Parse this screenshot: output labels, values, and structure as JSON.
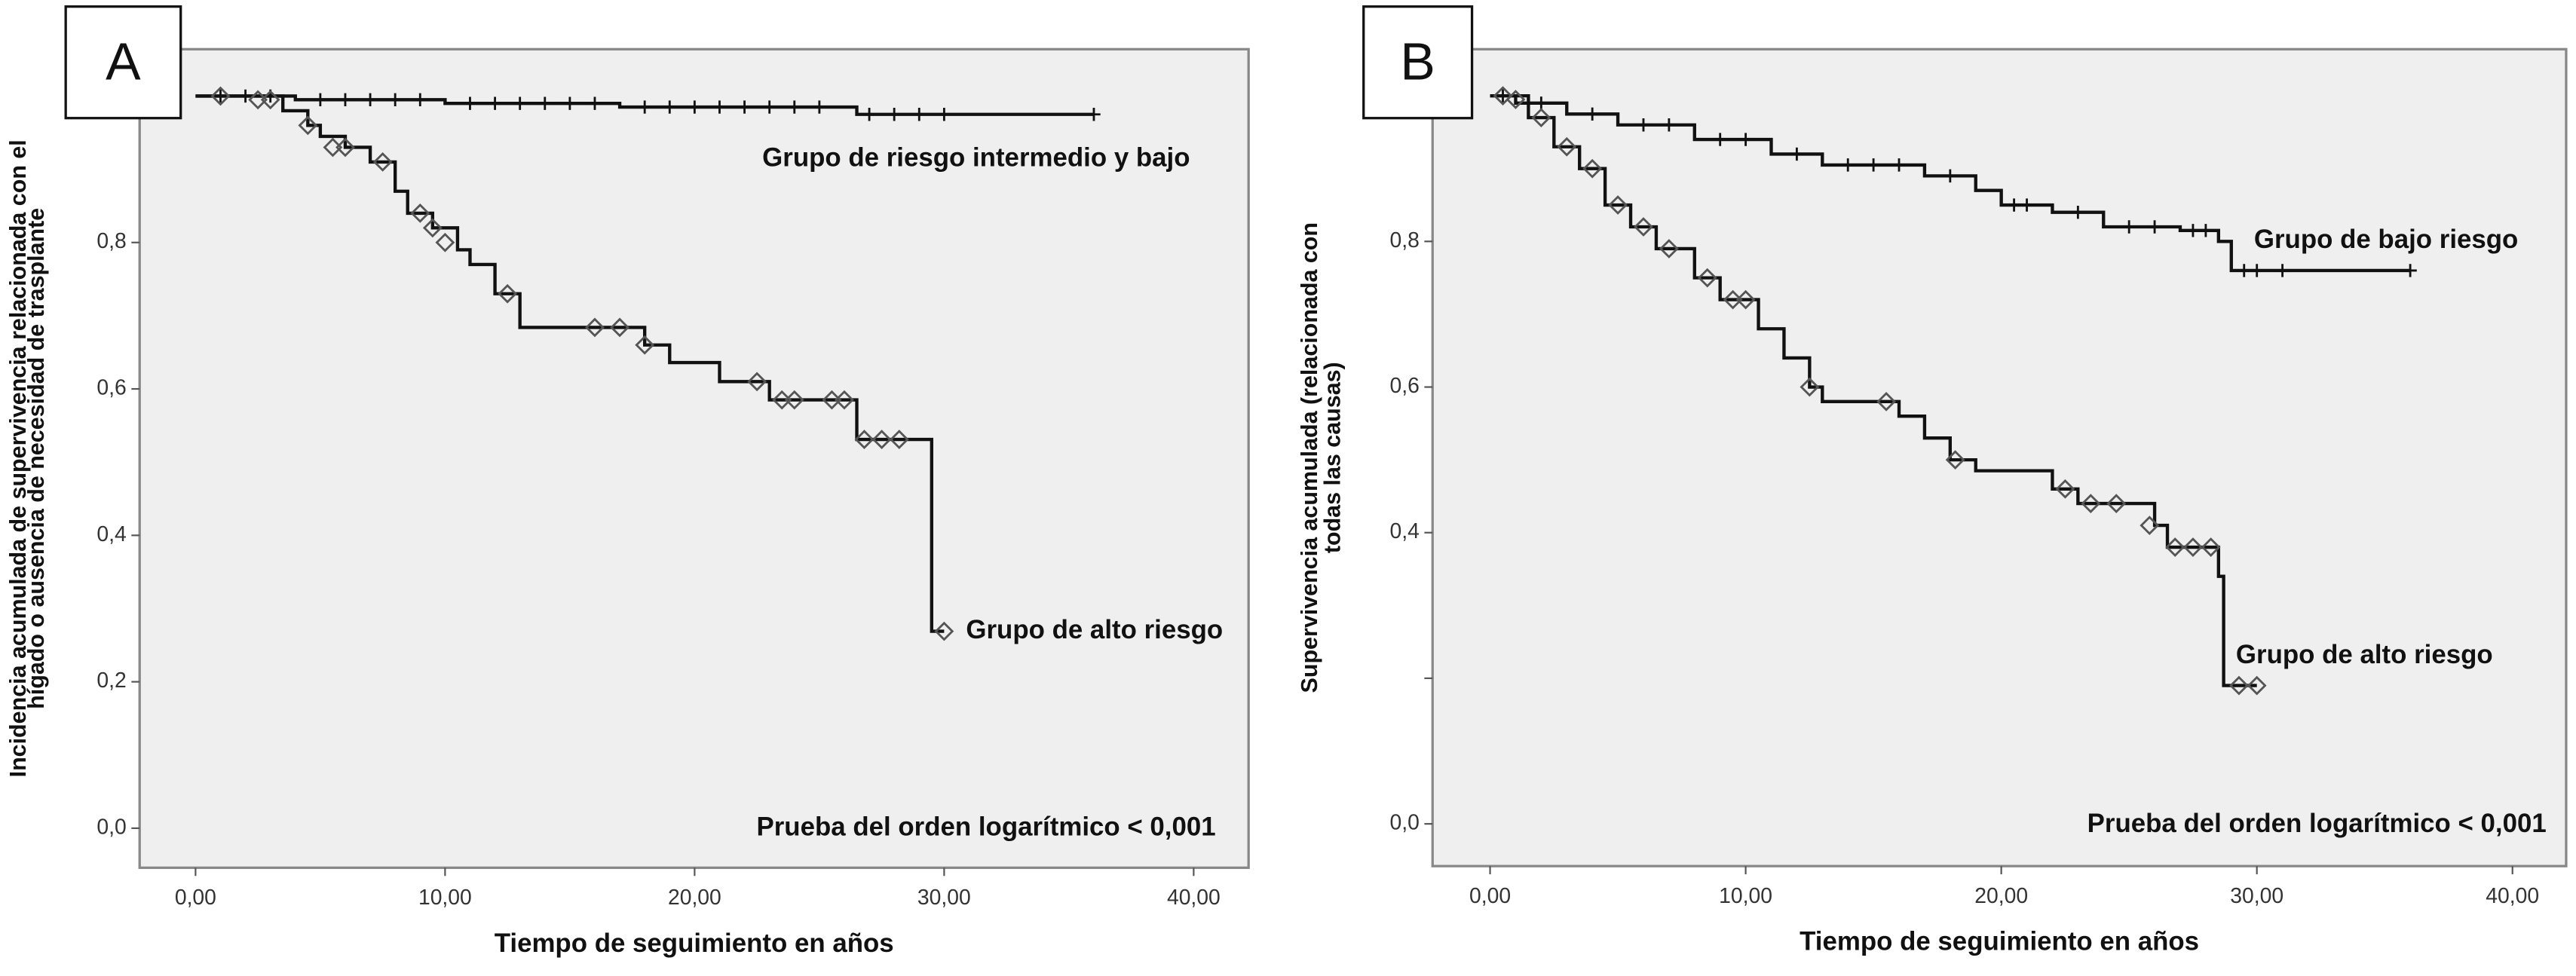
{
  "chart_data": [
    {
      "type": "line",
      "step": true,
      "panel": "A",
      "ylabel": [
        "Incidencia acumulada de supervivencia relacionada con el",
        "hígado o ausencia de necesidad de trasplante"
      ],
      "xlabel": "Tiempo de seguimiento en años",
      "annotation": "Prueba del orden logarítmico < 0,001",
      "xlim": [
        -2.24,
        42.2
      ],
      "ylim": [
        -0.054,
        1.064
      ],
      "xticks": [
        {
          "value": 0,
          "label": "0,00"
        },
        {
          "value": 10,
          "label": "10,00"
        },
        {
          "value": 20,
          "label": "20,00"
        },
        {
          "value": 30,
          "label": "30,00"
        },
        {
          "value": 40,
          "label": "40,00"
        }
      ],
      "yticks": [
        {
          "value": 0,
          "label": "0,0"
        },
        {
          "value": 0.2,
          "label": "0,2"
        },
        {
          "value": 0.4,
          "label": "0,4"
        },
        {
          "value": 0.6,
          "label": "0,6"
        },
        {
          "value": 0.8,
          "label": "0,8"
        }
      ],
      "series": [
        {
          "name": "Grupo de riesgo intermedio y bajo",
          "color": "#111111",
          "marker": "plus",
          "x": [
            0,
            4,
            10,
            17,
            26.5,
            36
          ],
          "values": [
            1.0,
            0.995,
            0.99,
            0.985,
            0.975,
            0.975
          ],
          "censored": {
            "x": [
              1,
              2,
              3,
              5,
              6,
              7,
              8,
              9,
              11,
              12,
              13,
              14,
              15,
              16,
              18,
              19,
              20,
              21,
              22,
              23,
              24,
              25,
              27,
              28,
              29,
              30,
              36
            ],
            "values": [
              1.0,
              1.0,
              1.0,
              0.995,
              0.995,
              0.995,
              0.995,
              0.995,
              0.99,
              0.99,
              0.99,
              0.99,
              0.99,
              0.99,
              0.985,
              0.985,
              0.985,
              0.985,
              0.985,
              0.985,
              0.985,
              0.985,
              0.975,
              0.975,
              0.975,
              0.975,
              0.975
            ]
          }
        },
        {
          "name": "Grupo de alto riesgo",
          "color": "#111111",
          "marker": "diamond",
          "x": [
            0,
            3.5,
            4.5,
            5,
            6,
            7,
            8,
            8.5,
            9.5,
            10.5,
            11,
            12,
            13,
            18,
            19,
            21,
            23,
            26.5,
            29.5,
            30
          ],
          "values": [
            1.0,
            0.98,
            0.96,
            0.945,
            0.93,
            0.91,
            0.87,
            0.84,
            0.82,
            0.79,
            0.77,
            0.73,
            0.684,
            0.66,
            0.636,
            0.61,
            0.585,
            0.531,
            0.269,
            0.269
          ],
          "censored": {
            "x": [
              1,
              2.5,
              3,
              4.5,
              5.5,
              6,
              7.5,
              9,
              9.5,
              10,
              12.5,
              16,
              17,
              18,
              22.5,
              23.5,
              24,
              25.5,
              26,
              26.8,
              27.5,
              28.2,
              30
            ],
            "values": [
              1.0,
              0.995,
              0.995,
              0.96,
              0.93,
              0.93,
              0.91,
              0.84,
              0.82,
              0.8,
              0.73,
              0.684,
              0.684,
              0.66,
              0.61,
              0.585,
              0.585,
              0.585,
              0.585,
              0.531,
              0.531,
              0.531,
              0.269
            ]
          }
        }
      ]
    },
    {
      "type": "line",
      "step": true,
      "panel": "B",
      "ylabel": [
        "Supervivencia acumulada (relacionada con",
        "todas las causas)"
      ],
      "xlabel": "Tiempo de seguimiento en años",
      "annotation": "Prueba del orden logarítmico < 0,001",
      "xlim": [
        -2.25,
        42.1
      ],
      "ylim": [
        -0.058,
        1.064
      ],
      "xticks": [
        {
          "value": 0,
          "label": "0,00"
        },
        {
          "value": 10,
          "label": "10,00"
        },
        {
          "value": 20,
          "label": "20,00"
        },
        {
          "value": 30,
          "label": "30,00"
        },
        {
          "value": 40,
          "label": "40,00"
        }
      ],
      "yticks": [
        {
          "value": 0,
          "label": "0,0"
        },
        {
          "value": 0.2,
          "label": null
        },
        {
          "value": 0.4,
          "label": "0,4"
        },
        {
          "value": 0.6,
          "label": "0,6"
        },
        {
          "value": 0.8,
          "label": "0,8"
        }
      ],
      "series": [
        {
          "name": "Grupo de bajo riesgo",
          "color": "#111111",
          "marker": "plus",
          "x": [
            0,
            1,
            3,
            5,
            8,
            11,
            13,
            17,
            19,
            20,
            22,
            24,
            27,
            28.5,
            29,
            36
          ],
          "values": [
            1.0,
            0.99,
            0.975,
            0.96,
            0.94,
            0.92,
            0.905,
            0.89,
            0.87,
            0.85,
            0.84,
            0.82,
            0.815,
            0.8,
            0.76,
            0.76
          ],
          "censored": {
            "x": [
              0.5,
              2,
              4,
              6,
              7,
              9,
              10,
              12,
              14,
              15,
              16,
              18,
              20.5,
              21,
              23,
              25,
              26,
              27.5,
              28,
              29.5,
              30,
              31,
              36
            ],
            "values": [
              1.0,
              0.99,
              0.975,
              0.96,
              0.96,
              0.94,
              0.94,
              0.92,
              0.905,
              0.905,
              0.905,
              0.89,
              0.85,
              0.85,
              0.84,
              0.82,
              0.82,
              0.815,
              0.815,
              0.76,
              0.76,
              0.76,
              0.76
            ]
          }
        },
        {
          "name": "Grupo de alto riesgo",
          "color": "#111111",
          "marker": "diamond",
          "x": [
            0,
            1.5,
            2.5,
            3.5,
            4.5,
            5.5,
            6.5,
            8,
            9,
            10.5,
            11.5,
            12.5,
            13,
            16,
            17,
            18,
            19,
            22,
            23,
            26,
            26.5,
            28.5,
            28.7,
            30
          ],
          "values": [
            1.0,
            0.97,
            0.93,
            0.9,
            0.85,
            0.82,
            0.79,
            0.75,
            0.72,
            0.68,
            0.64,
            0.6,
            0.58,
            0.56,
            0.53,
            0.5,
            0.485,
            0.46,
            0.44,
            0.41,
            0.38,
            0.34,
            0.19,
            0.19
          ],
          "censored": {
            "x": [
              0.5,
              1,
              2,
              3,
              4,
              5,
              6,
              7,
              8.5,
              9.5,
              10,
              12.5,
              15.5,
              18.2,
              22.5,
              23.5,
              24.5,
              25.8,
              26.8,
              27.5,
              28.2,
              29.3,
              30
            ],
            "values": [
              1.0,
              0.995,
              0.97,
              0.93,
              0.9,
              0.85,
              0.82,
              0.79,
              0.75,
              0.72,
              0.72,
              0.6,
              0.58,
              0.5,
              0.46,
              0.44,
              0.44,
              0.41,
              0.38,
              0.38,
              0.38,
              0.19,
              0.19
            ]
          }
        }
      ]
    }
  ]
}
